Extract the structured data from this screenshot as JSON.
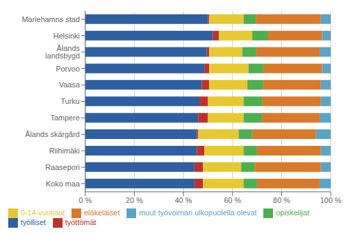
{
  "chart_data": {
    "type": "bar",
    "orientation": "horizontal",
    "stacked": true,
    "categories": [
      "Mariehamns stad",
      "Helsinki",
      "Ålands landsbygd",
      "Porvoo",
      "Vaasa",
      "Turku",
      "Tampere",
      "Ålands skärgård",
      "Riihimäki",
      "Raasepori",
      "Koko maa"
    ],
    "series": [
      {
        "name": "työlliset",
        "color": "#2E5FA3",
        "values": [
          50.0,
          52.0,
          49.5,
          48.5,
          47.5,
          46.5,
          46.0,
          45.5,
          45.5,
          44.5,
          44.5
        ]
      },
      {
        "name": "työttömät",
        "color": "#C0312B",
        "values": [
          0.5,
          2.5,
          1.0,
          2.0,
          3.0,
          3.5,
          4.0,
          0.5,
          3.0,
          3.5,
          3.5
        ]
      },
      {
        "name": "0-14-vuotiaat",
        "color": "#E8C830",
        "values": [
          14.0,
          13.5,
          13.5,
          16.0,
          15.5,
          14.5,
          14.5,
          16.5,
          16.0,
          15.5,
          16.5
        ]
      },
      {
        "name": "opiskelijat",
        "color": "#4CAF50",
        "values": [
          5.0,
          6.5,
          5.5,
          6.0,
          6.5,
          7.5,
          7.5,
          5.5,
          5.5,
          5.5,
          5.5
        ]
      },
      {
        "name": "eläkeläiset",
        "color": "#D97A2A",
        "values": [
          26.5,
          22.0,
          26.0,
          24.0,
          23.5,
          24.0,
          23.5,
          26.0,
          26.0,
          27.0,
          25.5
        ]
      },
      {
        "name": "muut työvoiman ulkopuolella olevat",
        "color": "#5BA3C9",
        "values": [
          4.0,
          3.5,
          4.5,
          3.5,
          4.0,
          4.0,
          4.5,
          6.0,
          4.0,
          4.0,
          4.5
        ]
      }
    ],
    "xlim": [
      0,
      100
    ],
    "xticks": [
      {
        "value": 0,
        "label": "0 %"
      },
      {
        "value": 20,
        "label": "20 %"
      },
      {
        "value": 40,
        "label": "40 %"
      },
      {
        "value": 60,
        "label": "60 %"
      },
      {
        "value": 80,
        "label": "80 %"
      },
      {
        "value": 100,
        "label": "100 %"
      }
    ],
    "grid": true,
    "legend": "bottom"
  }
}
